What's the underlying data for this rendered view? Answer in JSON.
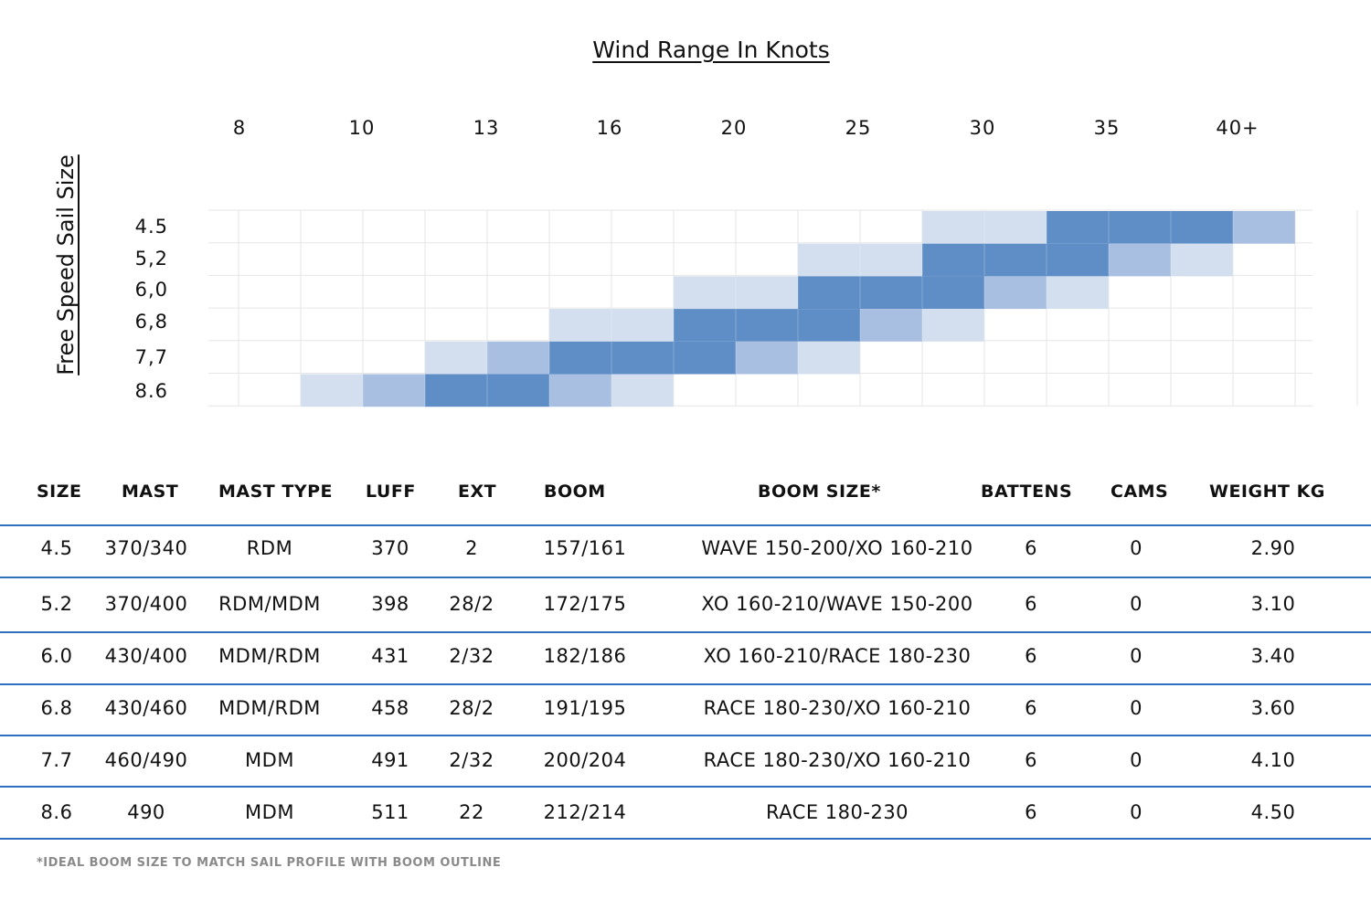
{
  "chart_data": {
    "type": "heatmap",
    "title": "Wind Range In Knots",
    "ylabel": "Free Speed Sail Size",
    "x_ticks": [
      "8",
      "10",
      "13",
      "16",
      "20",
      "25",
      "30",
      "35",
      "40+"
    ],
    "y_ticks": [
      "4.5",
      "5,2",
      "6,0",
      "6,8",
      "7,7",
      "8.6"
    ],
    "legend": "none",
    "grid": true,
    "colors": {
      "light": "#d3dfef",
      "medium": "#a8bfe1",
      "strong": "#5f8ec7",
      "grid": "#e6e6e6"
    },
    "bands": [
      {
        "sail": "4.5",
        "light": [
          1,
          2
        ],
        "strong": [
          3,
          5
        ],
        "medium": [
          6,
          6
        ]
      },
      {
        "sail": "5,2",
        "light": [
          [
            -1,
            0
          ],
          [
            4,
            4
          ]
        ],
        "strong": [
          1,
          3
        ],
        "medium": [
          3,
          4
        ]
      },
      {
        "sail": "6,0",
        "light": [
          [
            -3,
            -1
          ],
          [
            2,
            3
          ]
        ],
        "strong": [
          -1,
          1
        ],
        "medium": [
          1,
          2
        ]
      },
      {
        "sail": "6,8",
        "light": [
          [
            -5,
            -3
          ],
          [
            0,
            1
          ]
        ],
        "strong": [
          -3,
          -1
        ],
        "medium": [
          -1,
          0
        ]
      },
      {
        "sail": "7,7",
        "light": [
          [
            -7,
            -6
          ],
          [
            -2,
            -1
          ]
        ],
        "medium": [
          [
            -6,
            -5
          ],
          [
            -3,
            -2
          ]
        ],
        "strong": [
          -5,
          -3
        ]
      },
      {
        "sail": "8.6",
        "light": [
          [
            -9,
            -8
          ],
          [
            -5,
            -4
          ]
        ],
        "medium": [
          [
            -8,
            -7
          ],
          [
            -6,
            -5
          ]
        ],
        "strong": [
          -7,
          -6
        ]
      }
    ],
    "cells": [
      {
        "row": 0,
        "from": 11.5,
        "to": 13.5,
        "level": "light"
      },
      {
        "row": 0,
        "from": 13.5,
        "to": 16.5,
        "level": "strong"
      },
      {
        "row": 0,
        "from": 16.5,
        "to": 17.5,
        "level": "medium"
      },
      {
        "row": 1,
        "from": 9.5,
        "to": 11.5,
        "level": "light"
      },
      {
        "row": 1,
        "from": 11.5,
        "to": 14.5,
        "level": "strong"
      },
      {
        "row": 1,
        "from": 14.5,
        "to": 15.5,
        "level": "medium"
      },
      {
        "row": 1,
        "from": 15.5,
        "to": 16.5,
        "level": "light"
      },
      {
        "row": 2,
        "from": 7.5,
        "to": 9.5,
        "level": "light"
      },
      {
        "row": 2,
        "from": 9.5,
        "to": 12.5,
        "level": "strong"
      },
      {
        "row": 2,
        "from": 12.5,
        "to": 13.5,
        "level": "medium"
      },
      {
        "row": 2,
        "from": 13.5,
        "to": 14.5,
        "level": "light"
      },
      {
        "row": 3,
        "from": 5.5,
        "to": 7.5,
        "level": "light"
      },
      {
        "row": 3,
        "from": 7.5,
        "to": 10.5,
        "level": "strong"
      },
      {
        "row": 3,
        "from": 10.5,
        "to": 11.5,
        "level": "medium"
      },
      {
        "row": 3,
        "from": 11.5,
        "to": 12.5,
        "level": "light"
      },
      {
        "row": 4,
        "from": 3.5,
        "to": 4.5,
        "level": "light"
      },
      {
        "row": 4,
        "from": 4.5,
        "to": 5.5,
        "level": "medium"
      },
      {
        "row": 4,
        "from": 5.5,
        "to": 8.5,
        "level": "strong"
      },
      {
        "row": 4,
        "from": 8.5,
        "to": 9.5,
        "level": "medium"
      },
      {
        "row": 4,
        "from": 9.5,
        "to": 10.5,
        "level": "light"
      },
      {
        "row": 5,
        "from": 1.5,
        "to": 2.5,
        "level": "light"
      },
      {
        "row": 5,
        "from": 2.5,
        "to": 3.5,
        "level": "medium"
      },
      {
        "row": 5,
        "from": 3.5,
        "to": 5.5,
        "level": "strong"
      },
      {
        "row": 5,
        "from": 5.5,
        "to": 6.5,
        "level": "medium"
      },
      {
        "row": 5,
        "from": 6.5,
        "to": 7.5,
        "level": "light"
      }
    ]
  },
  "table": {
    "headers": [
      "SIZE",
      "MAST",
      "MAST TYPE",
      "LUFF",
      "EXT",
      "BOOM",
      "BOOM SIZE*",
      "BATTENS",
      "CAMS",
      "WEIGHT KG"
    ],
    "rows": [
      [
        "4.5",
        "370/340",
        "RDM",
        "370",
        "2",
        "157/161",
        "WAVE 150-200/XO 160-210",
        "6",
        "0",
        "2.90"
      ],
      [
        "5.2",
        "370/400",
        "RDM/MDM",
        "398",
        "28/2",
        "172/175",
        "XO 160-210/WAVE 150-200",
        "6",
        "0",
        "3.10"
      ],
      [
        "6.0",
        "430/400",
        "MDM/RDM",
        "431",
        "2/32",
        "182/186",
        "XO 160-210/RACE 180-230",
        "6",
        "0",
        "3.40"
      ],
      [
        "6.8",
        "430/460",
        "MDM/RDM",
        "458",
        "28/2",
        "191/195",
        "RACE 180-230/XO 160-210",
        "6",
        "0",
        "3.60"
      ],
      [
        "7.7",
        "460/490",
        "MDM",
        "491",
        "2/32",
        "200/204",
        "RACE 180-230/XO 160-210",
        "6",
        "0",
        "4.10"
      ],
      [
        "8.6",
        "490",
        "MDM",
        "511",
        "22",
        "212/214",
        "RACE 180-230",
        "6",
        "0",
        "4.50"
      ]
    ],
    "rule_color": "#2f6fbd",
    "footnote": "*IDEAL BOOM SIZE TO MATCH SAIL PROFILE WITH BOOM OUTLINE"
  }
}
